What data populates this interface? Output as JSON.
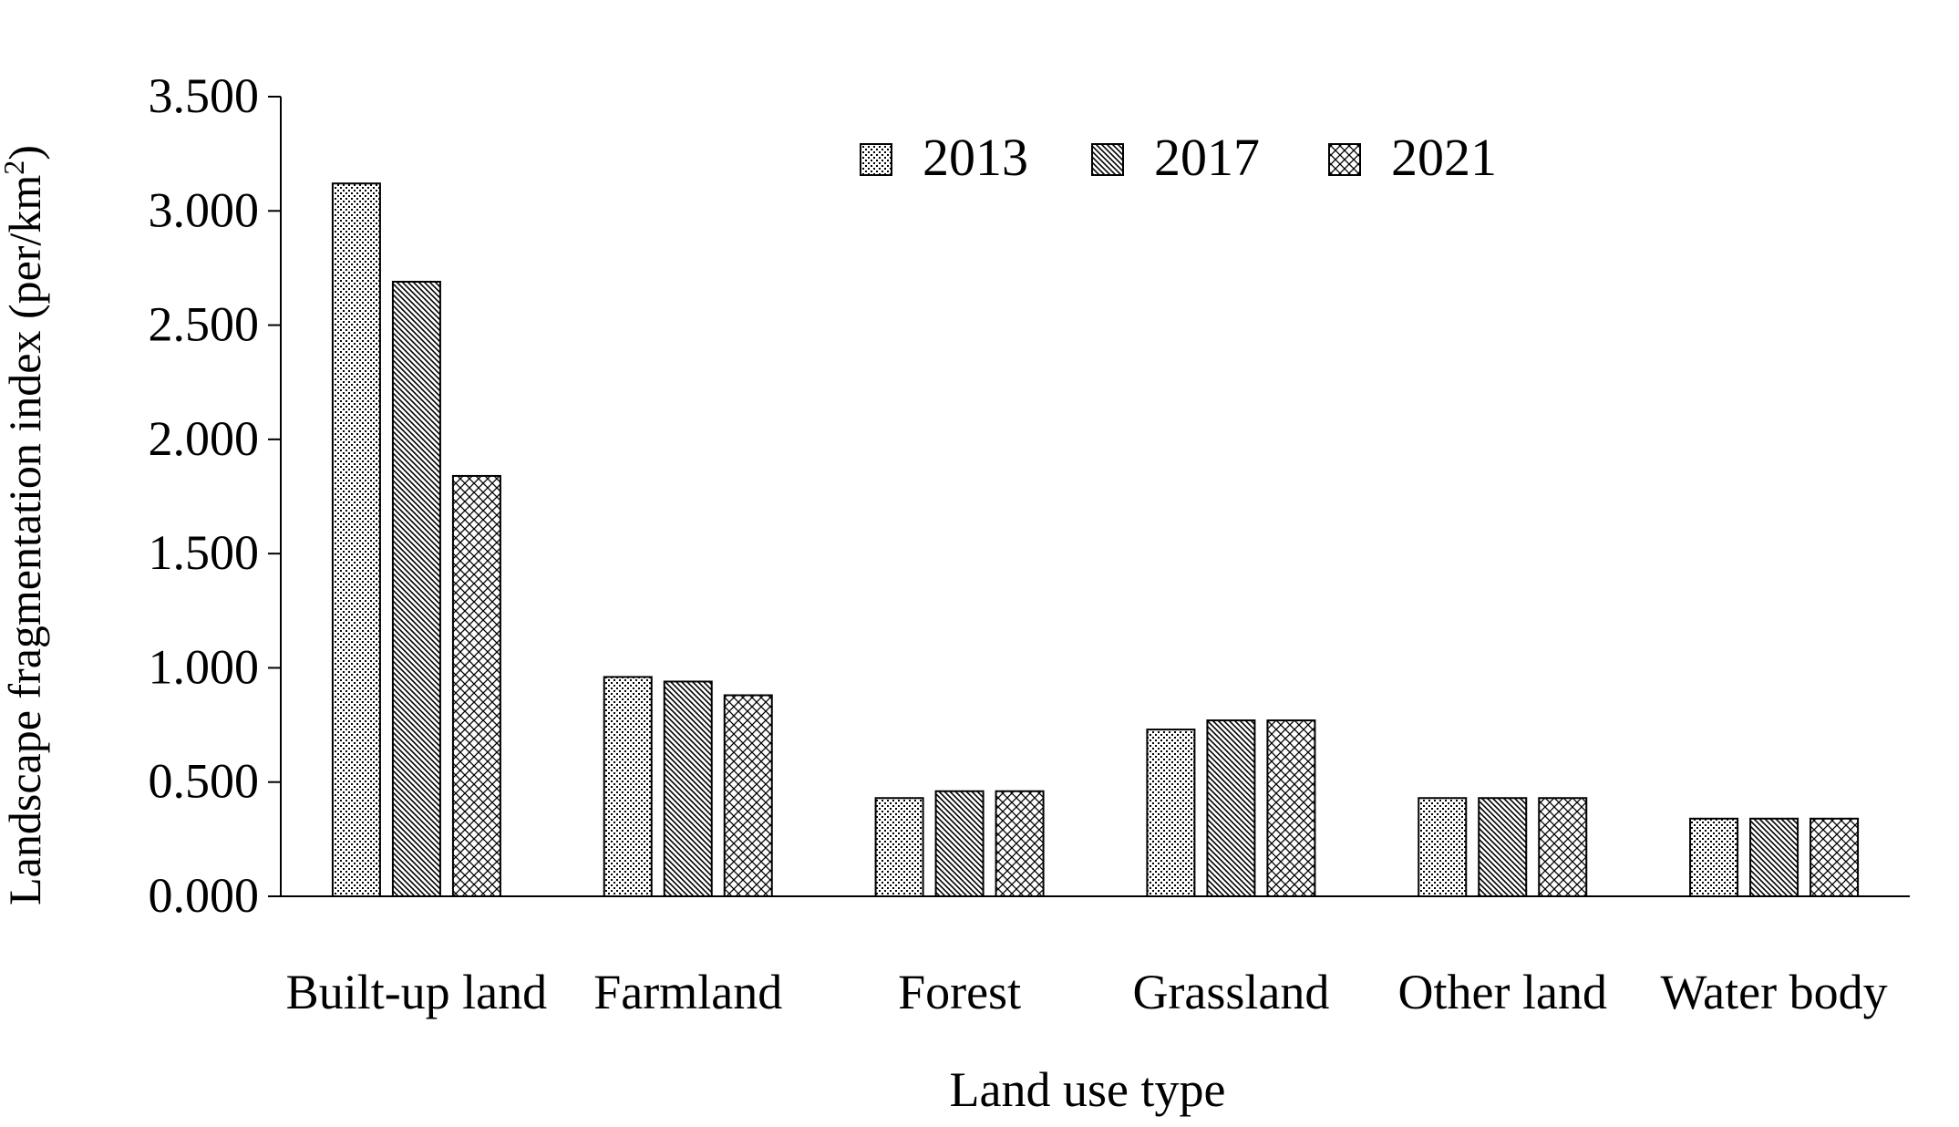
{
  "chart_data": {
    "type": "bar",
    "xlabel": "Land use type",
    "ylabel": "Landscape fragmentation index (per/km²)",
    "ylabel_main": "Landscape fragmentation index (per/km",
    "ylabel_sup": "2",
    "ylabel_close": ")",
    "ylim": [
      0,
      3.5
    ],
    "yticks": [
      "0.000",
      "0.500",
      "1.000",
      "1.500",
      "2.000",
      "2.500",
      "3.000",
      "3.500"
    ],
    "categories": [
      "Built-up land",
      "Farmland",
      "Forest",
      "Grassland",
      "Other land",
      "Water body"
    ],
    "series": [
      {
        "name": "2013",
        "pattern": "dots",
        "values": [
          3.12,
          0.96,
          0.43,
          0.73,
          0.43,
          0.34
        ]
      },
      {
        "name": "2017",
        "pattern": "diagonal",
        "values": [
          2.69,
          0.94,
          0.46,
          0.77,
          0.43,
          0.34
        ]
      },
      {
        "name": "2021",
        "pattern": "crosshatch",
        "values": [
          1.84,
          0.88,
          0.46,
          0.77,
          0.43,
          0.34
        ]
      }
    ],
    "legend_position": "top-center",
    "grid": false,
    "colors": {
      "bar_fill": "#ffffff",
      "pattern": "#000000",
      "axis": "#000000"
    }
  }
}
